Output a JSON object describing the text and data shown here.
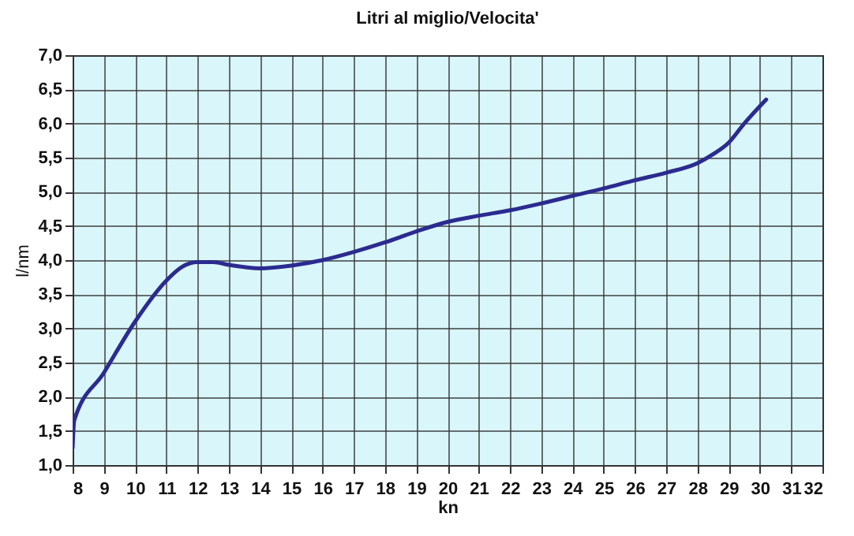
{
  "chart_data": {
    "type": "line",
    "title": "Litri al miglio/Velocita'",
    "xlabel": "kn",
    "ylabel": "l/nm",
    "x": [
      8,
      8.05,
      9,
      10,
      11,
      11.5,
      12,
      12.5,
      13,
      14,
      15,
      16,
      17,
      18,
      19,
      20,
      21,
      22,
      23,
      24,
      25,
      26,
      27,
      28,
      28.5,
      29,
      29.5,
      30.2
    ],
    "series": [
      {
        "color": "#2b2b8f",
        "values": [
          1.25,
          1.65,
          2.35,
          3.1,
          3.7,
          3.9,
          3.97,
          3.97,
          3.93,
          3.88,
          3.92,
          4.0,
          4.12,
          4.26,
          4.42,
          4.56,
          4.65,
          4.73,
          4.83,
          4.94,
          5.05,
          5.17,
          5.28,
          5.42,
          5.55,
          5.72,
          6.0,
          6.35
        ]
      }
    ],
    "xlim": [
      8,
      32
    ],
    "xticks": [
      8,
      9,
      10,
      11,
      12,
      13,
      14,
      15,
      16,
      17,
      18,
      19,
      20,
      21,
      22,
      23,
      24,
      25,
      26,
      27,
      28,
      29,
      30,
      31,
      32
    ],
    "ylim": [
      1,
      7
    ],
    "yticks": [
      {
        "value": 1,
        "label": "1,0"
      },
      {
        "value": 1.5,
        "label": "1,5"
      },
      {
        "value": 2,
        "label": "2,0"
      },
      {
        "value": 2.5,
        "label": "2,5"
      },
      {
        "value": 3,
        "label": "3,0"
      },
      {
        "value": 3.5,
        "label": "3,5"
      },
      {
        "value": 4,
        "label": "4,0"
      },
      {
        "value": 4.5,
        "label": "4,5"
      },
      {
        "value": 5,
        "label": "5,0"
      },
      {
        "value": 5.5,
        "label": "5,5"
      },
      {
        "value": 6,
        "label": "6,0"
      },
      {
        "value": 6.5,
        "label": "6,5"
      },
      {
        "value": 7,
        "label": "7,0"
      }
    ],
    "grid": true,
    "marker": "none",
    "line_style": "solid"
  }
}
